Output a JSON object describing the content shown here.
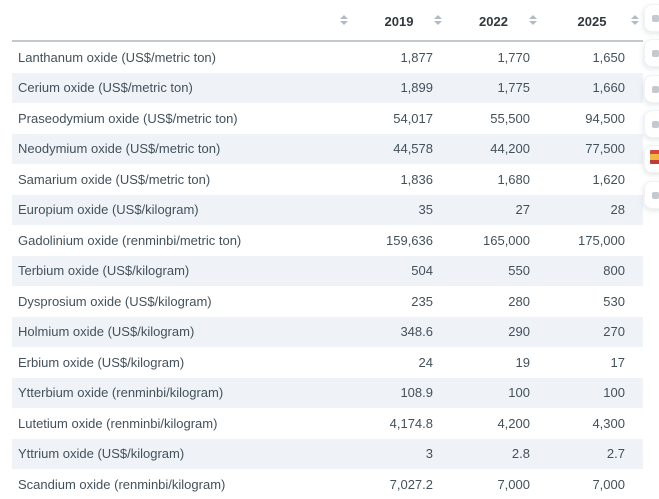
{
  "table": {
    "header": {
      "col_commodity": "",
      "col_2019": "2019",
      "col_2022": "2022",
      "col_2025": "2025"
    },
    "rows": [
      {
        "label": "Lanthanum oxide (US$/metric ton)",
        "values": [
          "1,877",
          "1,770",
          "1,650"
        ]
      },
      {
        "label": "Cerium oxide (US$/metric ton)",
        "values": [
          "1,899",
          "1,775",
          "1,660"
        ]
      },
      {
        "label": "Praseodymium oxide (US$/metric ton)",
        "values": [
          "54,017",
          "55,500",
          "94,500"
        ]
      },
      {
        "label": "Neodymium oxide (US$/metric ton)",
        "values": [
          "44,578",
          "44,200",
          "77,500"
        ]
      },
      {
        "label": "Samarium oxide (US$/metric ton)",
        "values": [
          "1,836",
          "1,680",
          "1,620"
        ]
      },
      {
        "label": "Europium oxide (US$/kilogram)",
        "values": [
          "35",
          "27",
          "28"
        ]
      },
      {
        "label": "Gadolinium oxide (renminbi/metric ton)",
        "values": [
          "159,636",
          "165,000",
          "175,000"
        ]
      },
      {
        "label": "Terbium oxide (US$/kilogram)",
        "values": [
          "504",
          "550",
          "800"
        ]
      },
      {
        "label": "Dysprosium oxide (US$/kilogram)",
        "values": [
          "235",
          "280",
          "530"
        ]
      },
      {
        "label": "Holmium oxide (US$/kilogram)",
        "values": [
          "348.6",
          "290",
          "270"
        ]
      },
      {
        "label": "Erbium oxide (US$/kilogram)",
        "values": [
          "24",
          "19",
          "17"
        ]
      },
      {
        "label": "Ytterbium oxide (renminbi/kilogram)",
        "values": [
          "108.9",
          "100",
          "100"
        ]
      },
      {
        "label": "Lutetium oxide (renminbi/kilogram)",
        "values": [
          "4,174.8",
          "4,200",
          "4,300"
        ]
      },
      {
        "label": "Yttrium oxide (US$/kilogram)",
        "values": [
          "3",
          "2.8",
          "2.7"
        ]
      },
      {
        "label": "Scandium oxide (renminbi/kilogram)",
        "values": [
          "7,027.2",
          "7,000",
          "7,000"
        ]
      }
    ],
    "sort_icon": "sort-both-arrows",
    "colors": {
      "stripe": "#eff3f7",
      "header_border": "#c3c8cd",
      "bottom_border": "#d3d7da",
      "body_text": "#43515b",
      "header_text": "#31383e",
      "sort_icon": "#b4bac2"
    }
  },
  "side_toolbar": {
    "buttons": [
      {
        "icon": "partial-gray-icon"
      },
      {
        "icon": "partial-gray-icon"
      },
      {
        "icon": "partial-gray-icon"
      },
      {
        "icon": "partial-gray-icon"
      },
      {
        "icon": "flag-icon",
        "flag_colors": [
          "#d9473b",
          "#f3b63e",
          "#c23b34"
        ]
      },
      {
        "icon": "partial-gray-icon"
      }
    ]
  }
}
